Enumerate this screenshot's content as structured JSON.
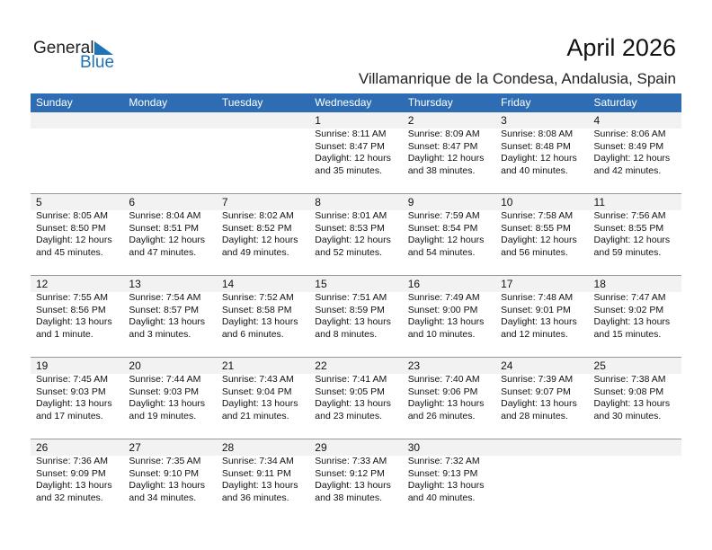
{
  "logo": {
    "text1": "General",
    "text2": "Blue"
  },
  "title": "April 2026",
  "location": "Villamanrique de la Condesa, Andalusia, Spain",
  "colors": {
    "header": "#2e6db4",
    "date_bar": "#f2f2f2",
    "logo_blue": "#1f73b7"
  },
  "weekdays": [
    "Sunday",
    "Monday",
    "Tuesday",
    "Wednesday",
    "Thursday",
    "Friday",
    "Saturday"
  ],
  "weeks": [
    [
      null,
      null,
      null,
      {
        "day": "1",
        "sunrise": "Sunrise: 8:11 AM",
        "sunset": "Sunset: 8:47 PM",
        "daylight": "Daylight: 12 hours",
        "minutes": "and 35 minutes."
      },
      {
        "day": "2",
        "sunrise": "Sunrise: 8:09 AM",
        "sunset": "Sunset: 8:47 PM",
        "daylight": "Daylight: 12 hours",
        "minutes": "and 38 minutes."
      },
      {
        "day": "3",
        "sunrise": "Sunrise: 8:08 AM",
        "sunset": "Sunset: 8:48 PM",
        "daylight": "Daylight: 12 hours",
        "minutes": "and 40 minutes."
      },
      {
        "day": "4",
        "sunrise": "Sunrise: 8:06 AM",
        "sunset": "Sunset: 8:49 PM",
        "daylight": "Daylight: 12 hours",
        "minutes": "and 42 minutes."
      }
    ],
    [
      {
        "day": "5",
        "sunrise": "Sunrise: 8:05 AM",
        "sunset": "Sunset: 8:50 PM",
        "daylight": "Daylight: 12 hours",
        "minutes": "and 45 minutes."
      },
      {
        "day": "6",
        "sunrise": "Sunrise: 8:04 AM",
        "sunset": "Sunset: 8:51 PM",
        "daylight": "Daylight: 12 hours",
        "minutes": "and 47 minutes."
      },
      {
        "day": "7",
        "sunrise": "Sunrise: 8:02 AM",
        "sunset": "Sunset: 8:52 PM",
        "daylight": "Daylight: 12 hours",
        "minutes": "and 49 minutes."
      },
      {
        "day": "8",
        "sunrise": "Sunrise: 8:01 AM",
        "sunset": "Sunset: 8:53 PM",
        "daylight": "Daylight: 12 hours",
        "minutes": "and 52 minutes."
      },
      {
        "day": "9",
        "sunrise": "Sunrise: 7:59 AM",
        "sunset": "Sunset: 8:54 PM",
        "daylight": "Daylight: 12 hours",
        "minutes": "and 54 minutes."
      },
      {
        "day": "10",
        "sunrise": "Sunrise: 7:58 AM",
        "sunset": "Sunset: 8:55 PM",
        "daylight": "Daylight: 12 hours",
        "minutes": "and 56 minutes."
      },
      {
        "day": "11",
        "sunrise": "Sunrise: 7:56 AM",
        "sunset": "Sunset: 8:55 PM",
        "daylight": "Daylight: 12 hours",
        "minutes": "and 59 minutes."
      }
    ],
    [
      {
        "day": "12",
        "sunrise": "Sunrise: 7:55 AM",
        "sunset": "Sunset: 8:56 PM",
        "daylight": "Daylight: 13 hours",
        "minutes": "and 1 minute."
      },
      {
        "day": "13",
        "sunrise": "Sunrise: 7:54 AM",
        "sunset": "Sunset: 8:57 PM",
        "daylight": "Daylight: 13 hours",
        "minutes": "and 3 minutes."
      },
      {
        "day": "14",
        "sunrise": "Sunrise: 7:52 AM",
        "sunset": "Sunset: 8:58 PM",
        "daylight": "Daylight: 13 hours",
        "minutes": "and 6 minutes."
      },
      {
        "day": "15",
        "sunrise": "Sunrise: 7:51 AM",
        "sunset": "Sunset: 8:59 PM",
        "daylight": "Daylight: 13 hours",
        "minutes": "and 8 minutes."
      },
      {
        "day": "16",
        "sunrise": "Sunrise: 7:49 AM",
        "sunset": "Sunset: 9:00 PM",
        "daylight": "Daylight: 13 hours",
        "minutes": "and 10 minutes."
      },
      {
        "day": "17",
        "sunrise": "Sunrise: 7:48 AM",
        "sunset": "Sunset: 9:01 PM",
        "daylight": "Daylight: 13 hours",
        "minutes": "and 12 minutes."
      },
      {
        "day": "18",
        "sunrise": "Sunrise: 7:47 AM",
        "sunset": "Sunset: 9:02 PM",
        "daylight": "Daylight: 13 hours",
        "minutes": "and 15 minutes."
      }
    ],
    [
      {
        "day": "19",
        "sunrise": "Sunrise: 7:45 AM",
        "sunset": "Sunset: 9:03 PM",
        "daylight": "Daylight: 13 hours",
        "minutes": "and 17 minutes."
      },
      {
        "day": "20",
        "sunrise": "Sunrise: 7:44 AM",
        "sunset": "Sunset: 9:03 PM",
        "daylight": "Daylight: 13 hours",
        "minutes": "and 19 minutes."
      },
      {
        "day": "21",
        "sunrise": "Sunrise: 7:43 AM",
        "sunset": "Sunset: 9:04 PM",
        "daylight": "Daylight: 13 hours",
        "minutes": "and 21 minutes."
      },
      {
        "day": "22",
        "sunrise": "Sunrise: 7:41 AM",
        "sunset": "Sunset: 9:05 PM",
        "daylight": "Daylight: 13 hours",
        "minutes": "and 23 minutes."
      },
      {
        "day": "23",
        "sunrise": "Sunrise: 7:40 AM",
        "sunset": "Sunset: 9:06 PM",
        "daylight": "Daylight: 13 hours",
        "minutes": "and 26 minutes."
      },
      {
        "day": "24",
        "sunrise": "Sunrise: 7:39 AM",
        "sunset": "Sunset: 9:07 PM",
        "daylight": "Daylight: 13 hours",
        "minutes": "and 28 minutes."
      },
      {
        "day": "25",
        "sunrise": "Sunrise: 7:38 AM",
        "sunset": "Sunset: 9:08 PM",
        "daylight": "Daylight: 13 hours",
        "minutes": "and 30 minutes."
      }
    ],
    [
      {
        "day": "26",
        "sunrise": "Sunrise: 7:36 AM",
        "sunset": "Sunset: 9:09 PM",
        "daylight": "Daylight: 13 hours",
        "minutes": "and 32 minutes."
      },
      {
        "day": "27",
        "sunrise": "Sunrise: 7:35 AM",
        "sunset": "Sunset: 9:10 PM",
        "daylight": "Daylight: 13 hours",
        "minutes": "and 34 minutes."
      },
      {
        "day": "28",
        "sunrise": "Sunrise: 7:34 AM",
        "sunset": "Sunset: 9:11 PM",
        "daylight": "Daylight: 13 hours",
        "minutes": "and 36 minutes."
      },
      {
        "day": "29",
        "sunrise": "Sunrise: 7:33 AM",
        "sunset": "Sunset: 9:12 PM",
        "daylight": "Daylight: 13 hours",
        "minutes": "and 38 minutes."
      },
      {
        "day": "30",
        "sunrise": "Sunrise: 7:32 AM",
        "sunset": "Sunset: 9:13 PM",
        "daylight": "Daylight: 13 hours",
        "minutes": "and 40 minutes."
      },
      null,
      null
    ]
  ]
}
